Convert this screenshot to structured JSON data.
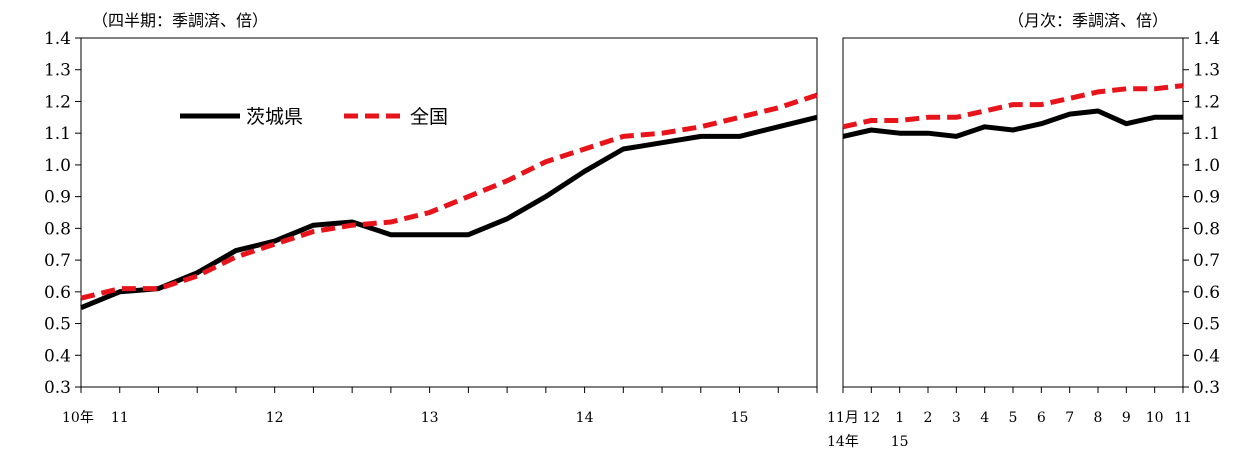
{
  "chart_data": [
    {
      "type": "line",
      "unit_label": "（四半期：季調済、倍）",
      "ylim": [
        0.3,
        1.4
      ],
      "yticks": [
        "0.3",
        "0.4",
        "0.5",
        "0.6",
        "0.7",
        "0.8",
        "0.9",
        "1.0",
        "1.1",
        "1.2",
        "1.3",
        "1.4"
      ],
      "x_tick_labels": [
        {
          "index": 0,
          "text": "10年"
        },
        {
          "index": 1,
          "text": "11"
        },
        {
          "index": 5,
          "text": "12"
        },
        {
          "index": 9,
          "text": "13"
        },
        {
          "index": 13,
          "text": "14"
        },
        {
          "index": 17,
          "text": "15"
        }
      ],
      "legend": {
        "placement": "top-left"
      },
      "series": [
        {
          "name": "茨城県",
          "color": "#000000",
          "style": "solid",
          "values": [
            0.55,
            0.6,
            0.61,
            0.66,
            0.73,
            0.76,
            0.81,
            0.82,
            0.78,
            0.78,
            0.78,
            0.83,
            0.9,
            0.98,
            1.05,
            1.07,
            1.09,
            1.09,
            1.12,
            1.15
          ]
        },
        {
          "name": "全国",
          "color": "#e8141b",
          "style": "dashed",
          "values": [
            0.58,
            0.61,
            0.61,
            0.65,
            0.71,
            0.75,
            0.79,
            0.81,
            0.82,
            0.85,
            0.9,
            0.95,
            1.01,
            1.05,
            1.09,
            1.1,
            1.12,
            1.15,
            1.18,
            1.22
          ]
        }
      ]
    },
    {
      "type": "line",
      "unit_label": "（月次：季調済、倍）",
      "ylim": [
        0.3,
        1.4
      ],
      "yticks": [
        "0.3",
        "0.4",
        "0.5",
        "0.6",
        "0.7",
        "0.8",
        "0.9",
        "1.0",
        "1.1",
        "1.2",
        "1.3",
        "1.4"
      ],
      "categories": [
        "11月",
        "12",
        "1",
        "2",
        "3",
        "4",
        "5",
        "6",
        "7",
        "8",
        "9",
        "10",
        "11"
      ],
      "year_labels": [
        {
          "index": 0,
          "text": "14年"
        },
        {
          "index": 2,
          "text": "15"
        }
      ],
      "series": [
        {
          "name": "茨城県",
          "color": "#000000",
          "style": "solid",
          "values": [
            1.09,
            1.11,
            1.1,
            1.1,
            1.09,
            1.12,
            1.11,
            1.13,
            1.16,
            1.17,
            1.13,
            1.15,
            1.15
          ]
        },
        {
          "name": "全国",
          "color": "#e8141b",
          "style": "dashed",
          "values": [
            1.12,
            1.14,
            1.14,
            1.15,
            1.15,
            1.17,
            1.19,
            1.19,
            1.21,
            1.23,
            1.24,
            1.24,
            1.25
          ]
        }
      ]
    }
  ]
}
